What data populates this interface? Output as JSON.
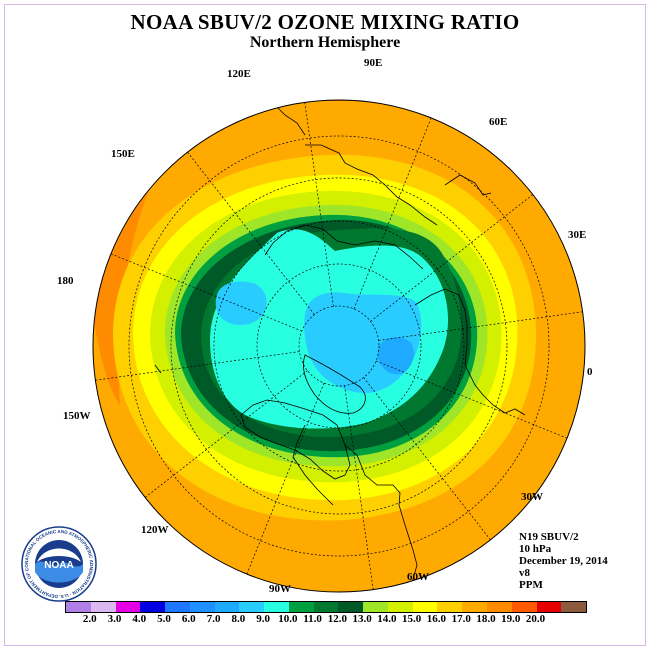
{
  "header": {
    "title": "NOAA SBUV/2 OZONE MIXING RATIO",
    "subtitle": "Northern Hemisphere"
  },
  "map": {
    "projection": "north-polar-stereographic",
    "longitude_labels": [
      "120E",
      "90E",
      "60E",
      "150E",
      "30E",
      "180",
      "0",
      "150W",
      "30W",
      "120W",
      "60W",
      "90W"
    ]
  },
  "info": {
    "satellite": "N19 SBUV/2",
    "pressure": "10 hPa",
    "date": "December 19, 2014",
    "version": "v8",
    "units": "PPM"
  },
  "logo": {
    "text": "NOAA",
    "ring_text": "NATIONAL OCEANIC AND ATMOSPHERIC ADMINISTRATION · U.S. DEPARTMENT OF COMMERCE"
  },
  "colorbar": {
    "colors": [
      "#b080e8",
      "#dab8f0",
      "#e600e6",
      "#0000e0",
      "#1e78ff",
      "#1e90ff",
      "#1eaaff",
      "#28ccff",
      "#28ffe0",
      "#00a040",
      "#007830",
      "#005a28",
      "#a0e628",
      "#d2f000",
      "#ffff00",
      "#ffd000",
      "#ffaa00",
      "#ff8c00",
      "#ff5a00",
      "#e60000",
      "#8c5a3c"
    ],
    "labels": [
      "2.0",
      "3.0",
      "4.0",
      "5.0",
      "6.0",
      "7.0",
      "8.0",
      "9.0",
      "10.0",
      "11.0",
      "12.0",
      "13.0",
      "14.0",
      "15.0",
      "16.0",
      "17.0",
      "18.0",
      "19.0",
      "20.0"
    ]
  }
}
